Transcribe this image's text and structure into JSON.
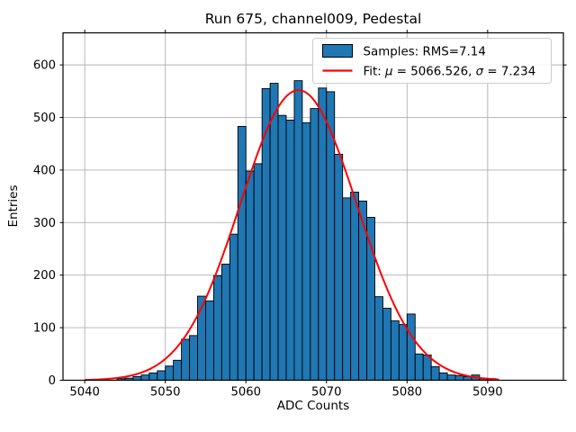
{
  "chart_data": {
    "type": "bar",
    "title": "Run 675, channel009, Pedestal",
    "xlabel": "ADC Counts",
    "ylabel": "Entries",
    "xlim": [
      5037.3,
      5099.4
    ],
    "ylim": [
      0,
      661
    ],
    "xticks": [
      5040,
      5050,
      5060,
      5070,
      5080,
      5090
    ],
    "yticks": [
      0,
      100,
      200,
      300,
      400,
      500,
      600
    ],
    "grid": true,
    "bin_width": 1,
    "bin_left_edges": [
      5044,
      5045,
      5046,
      5047,
      5048,
      5049,
      5050,
      5051,
      5052,
      5053,
      5054,
      5055,
      5056,
      5057,
      5058,
      5059,
      5060,
      5061,
      5062,
      5063,
      5064,
      5065,
      5066,
      5067,
      5068,
      5069,
      5070,
      5071,
      5072,
      5073,
      5074,
      5075,
      5076,
      5077,
      5078,
      5079,
      5080,
      5081,
      5082,
      5083,
      5084,
      5085,
      5086,
      5087,
      5088,
      5089,
      5090
    ],
    "values": [
      3,
      4,
      7,
      10,
      14,
      18,
      27,
      38,
      78,
      85,
      160,
      151,
      199,
      221,
      278,
      483,
      398,
      412,
      555,
      565,
      504,
      495,
      570,
      490,
      517,
      556,
      549,
      430,
      347,
      358,
      341,
      310,
      159,
      137,
      113,
      106,
      126,
      50,
      48,
      26,
      14,
      10,
      9,
      7,
      10,
      4,
      3
    ],
    "fit": {
      "mu": 5066.526,
      "sigma": 7.234,
      "amplitude": 552,
      "x_range": [
        5040.1,
        5091.3
      ]
    },
    "legend": {
      "position": "upper right",
      "entries": [
        {
          "marker": "patch",
          "label": "Samples: RMS=7.14",
          "label_runs": [
            [
              "Samples: RMS=7.14",
              false
            ]
          ]
        },
        {
          "marker": "line",
          "label": "Fit: μ = 5066.526, σ = 7.234",
          "label_runs": [
            [
              "Fit: ",
              false
            ],
            [
              "μ",
              true
            ],
            [
              " = 5066.526, ",
              false
            ],
            [
              "σ",
              true
            ],
            [
              " = 7.234",
              false
            ]
          ]
        }
      ]
    },
    "colors": {
      "bar_fill": "#1f77b4",
      "bar_edge": "#000000",
      "fit_line": "#ff0000",
      "grid": "#b0b0b0",
      "axes": "#000000",
      "legend_border": "#cccccc",
      "background": "#ffffff"
    }
  }
}
